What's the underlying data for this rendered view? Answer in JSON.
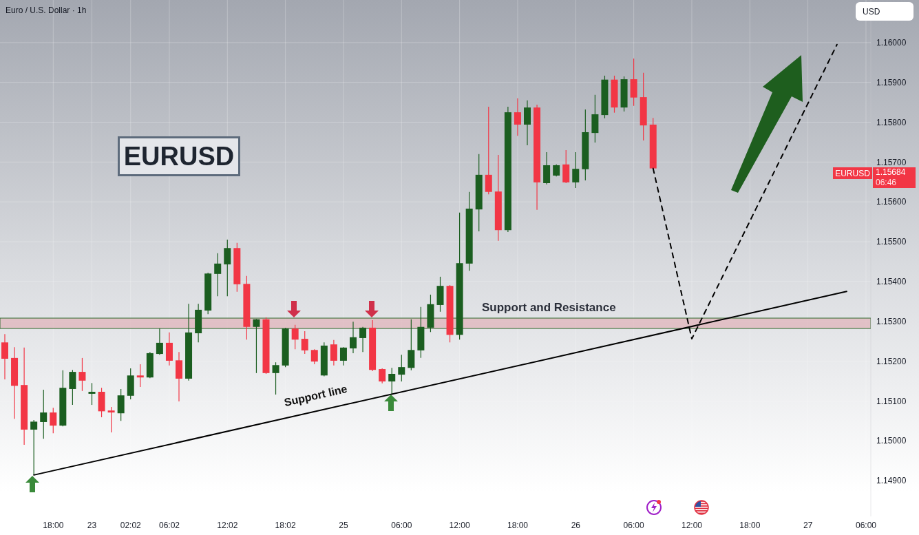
{
  "chart_data": {
    "type": "candlestick",
    "title": "Euro / U.S. Dollar · 1h",
    "categories": [
      null,
      null,
      null,
      null,
      null,
      "18:00",
      null,
      null,
      null,
      "23",
      null,
      null,
      null,
      "02:02",
      null,
      null,
      null,
      "06:02",
      null,
      null,
      null,
      null,
      null,
      "12:02",
      null,
      null,
      null,
      null,
      null,
      "18:02",
      null,
      null,
      null,
      null,
      null,
      "25",
      null,
      null,
      null,
      null,
      null,
      "06:00",
      null,
      null,
      null,
      null,
      null,
      "12:00",
      null,
      null,
      null,
      null,
      null,
      "18:00",
      null,
      null,
      null,
      null,
      null,
      "26",
      null,
      null,
      null,
      null,
      null,
      "06:00",
      null,
      null,
      null,
      null,
      null,
      "12:00",
      null,
      null,
      null,
      null,
      null,
      "18:00",
      null,
      null,
      null,
      null,
      null,
      "27",
      null,
      null,
      null,
      null,
      null,
      "06:00"
    ],
    "ohlc": [
      [
        1.15247,
        1.15268,
        1.15154,
        1.15206
      ],
      [
        1.15208,
        1.15235,
        1.15055,
        1.15138
      ],
      [
        1.1514,
        1.15234,
        1.1499,
        1.15028
      ],
      [
        1.15028,
        1.15052,
        1.14914,
        1.15048
      ],
      [
        1.15047,
        1.15128,
        1.15005,
        1.15071
      ],
      [
        1.15071,
        1.15083,
        1.15019,
        1.15038
      ],
      [
        1.15038,
        1.15177,
        1.15036,
        1.15133
      ],
      [
        1.1513,
        1.15178,
        1.1509,
        1.15173
      ],
      [
        1.15173,
        1.15208,
        1.15125,
        1.15151
      ],
      [
        1.15118,
        1.15145,
        1.1509,
        1.15123
      ],
      [
        1.15123,
        1.15133,
        1.15059,
        1.15074
      ],
      [
        1.15076,
        1.15085,
        1.15021,
        1.15071
      ],
      [
        1.15069,
        1.1513,
        1.1505,
        1.15114
      ],
      [
        1.15113,
        1.15182,
        1.15104,
        1.15164
      ],
      [
        1.15164,
        1.15192,
        1.15135,
        1.15159
      ],
      [
        1.15159,
        1.15223,
        1.15157,
        1.1522
      ],
      [
        1.15218,
        1.15282,
        1.15216,
        1.15246
      ],
      [
        1.15246,
        1.15272,
        1.15189,
        1.15201
      ],
      [
        1.15202,
        1.15223,
        1.15099,
        1.15156
      ],
      [
        1.15156,
        1.15344,
        1.15151,
        1.15272
      ],
      [
        1.1527,
        1.15344,
        1.15247,
        1.15329
      ],
      [
        1.15327,
        1.15422,
        1.15318,
        1.1542
      ],
      [
        1.15419,
        1.15471,
        1.15363,
        1.15445
      ],
      [
        1.15443,
        1.15505,
        1.15363,
        1.15484
      ],
      [
        1.15484,
        1.15497,
        1.15374,
        1.15393
      ],
      [
        1.15394,
        1.15414,
        1.15254,
        1.15286
      ],
      [
        1.15286,
        1.15306,
        1.1517,
        1.15305
      ],
      [
        1.15305,
        1.1531,
        1.15168,
        1.1517
      ],
      [
        1.1517,
        1.15197,
        1.15116,
        1.1519
      ],
      [
        1.15189,
        1.15284,
        1.15185,
        1.15282
      ],
      [
        1.15282,
        1.15291,
        1.1523,
        1.15254
      ],
      [
        1.15256,
        1.15275,
        1.15218,
        1.15227
      ],
      [
        1.15228,
        1.1523,
        1.15192,
        1.15199
      ],
      [
        1.15164,
        1.15247,
        1.15162,
        1.15239
      ],
      [
        1.15242,
        1.15253,
        1.15189,
        1.15201
      ],
      [
        1.15201,
        1.15235,
        1.15189,
        1.15234
      ],
      [
        1.15232,
        1.15299,
        1.1522,
        1.1526
      ],
      [
        1.15258,
        1.15286,
        1.15223,
        1.15284
      ],
      [
        1.15284,
        1.15303,
        1.15175,
        1.15178
      ],
      [
        1.1518,
        1.15182,
        1.15144,
        1.15149
      ],
      [
        1.15149,
        1.15183,
        1.15116,
        1.15168
      ],
      [
        1.15166,
        1.15216,
        1.15149,
        1.15185
      ],
      [
        1.15183,
        1.15305,
        1.15177,
        1.15228
      ],
      [
        1.15227,
        1.15336,
        1.15208,
        1.15286
      ],
      [
        1.15284,
        1.15367,
        1.15273,
        1.15343
      ],
      [
        1.15341,
        1.15412,
        1.15324,
        1.15389
      ],
      [
        1.15389,
        1.15391,
        1.15247,
        1.15266
      ],
      [
        1.15266,
        1.15573,
        1.15254,
        1.15446
      ],
      [
        1.15445,
        1.15625,
        1.15427,
        1.15583
      ],
      [
        1.15581,
        1.1572,
        1.15526,
        1.15668
      ],
      [
        1.15668,
        1.15839,
        1.15619,
        1.15625
      ],
      [
        1.15626,
        1.15718,
        1.15502,
        1.15529
      ],
      [
        1.15529,
        1.15839,
        1.15524,
        1.15825
      ],
      [
        1.15825,
        1.1586,
        1.15766,
        1.15794
      ],
      [
        1.15794,
        1.15855,
        1.15742,
        1.15837
      ],
      [
        1.15837,
        1.15844,
        1.1558,
        1.15649
      ],
      [
        1.15647,
        1.15725,
        1.15644,
        1.15692
      ],
      [
        1.15666,
        1.15694,
        1.15664,
        1.15692
      ],
      [
        1.15694,
        1.1573,
        1.15647,
        1.15649
      ],
      [
        1.15649,
        1.15725,
        1.15635,
        1.15683
      ],
      [
        1.15682,
        1.15832,
        1.15654,
        1.15775
      ],
      [
        1.15773,
        1.15869,
        1.15749,
        1.1582
      ],
      [
        1.15818,
        1.15917,
        1.1581,
        1.15907
      ],
      [
        1.15907,
        1.15917,
        1.15824,
        1.15837
      ],
      [
        1.15837,
        1.15915,
        1.15827,
        1.15908
      ],
      [
        1.15908,
        1.1596,
        1.15841,
        1.15862
      ],
      [
        1.15863,
        1.15924,
        1.15754,
        1.15792
      ],
      [
        1.15794,
        1.15811,
        1.15684,
        1.15684
      ],
      null,
      null,
      null,
      null,
      null,
      null,
      null,
      null,
      null,
      null,
      null,
      null,
      null,
      null,
      null,
      null,
      null,
      null,
      null,
      null,
      null,
      null
    ],
    "colors": [
      "#f23645",
      "#f23645",
      "#f23645",
      "#1b5e20",
      "#1b5e20",
      "#f23645",
      "#1b5e20",
      "#1b5e20",
      "#f23645",
      "#1b5e20",
      "#f23645",
      "#f23645",
      "#1b5e20",
      "#1b5e20",
      "#f23645",
      "#1b5e20",
      "#1b5e20",
      "#f23645",
      "#f23645",
      "#1b5e20",
      "#1b5e20",
      "#1b5e20",
      "#1b5e20",
      "#1b5e20",
      "#f23645",
      "#f23645",
      "#1b5e20",
      "#f23645",
      "#1b5e20",
      "#1b5e20",
      "#f23645",
      "#f23645",
      "#f23645",
      "#1b5e20",
      "#f23645",
      "#1b5e20",
      "#1b5e20",
      "#1b5e20",
      "#f23645",
      "#f23645",
      "#1b5e20",
      "#1b5e20",
      "#1b5e20",
      "#1b5e20",
      "#1b5e20",
      "#1b5e20",
      "#f23645",
      "#1b5e20",
      "#1b5e20",
      "#1b5e20",
      "#f23645",
      "#f23645",
      "#1b5e20",
      "#f23645",
      "#1b5e20",
      "#f23645",
      "#1b5e20",
      "#1b5e20",
      "#f23645",
      "#1b5e20",
      "#1b5e20",
      "#1b5e20",
      "#1b5e20",
      "#f23645",
      "#1b5e20",
      "#f23645",
      "#f23645",
      "#f23645",
      null,
      null,
      null,
      null,
      null,
      null,
      null,
      null,
      null,
      null,
      null,
      null,
      null,
      null,
      null,
      null,
      null,
      null,
      null,
      null,
      null,
      null
    ],
    "series": [
      {
        "type": "line",
        "color": "#000000",
        "line_style": "solid",
        "values": [
          null,
          null,
          null,
          1.14914,
          null,
          null,
          null,
          null,
          null,
          null,
          null,
          null,
          null,
          null,
          null,
          null,
          null,
          null,
          null,
          null,
          null,
          null,
          null,
          null,
          null,
          null,
          null,
          null,
          null,
          null,
          null,
          null,
          null,
          null,
          null,
          null,
          null,
          null,
          null,
          null,
          null,
          null,
          null,
          null,
          null,
          null,
          null,
          null,
          null,
          null,
          null,
          null,
          null,
          null,
          null,
          null,
          null,
          null,
          null,
          null,
          null,
          null,
          null,
          null,
          null,
          null,
          null,
          null,
          null,
          null,
          null,
          null,
          null,
          null,
          null,
          null,
          null,
          null,
          null,
          null,
          null,
          null,
          null,
          null,
          null,
          null,
          null,
          1.15375,
          null,
          null
        ]
      },
      {
        "type": "line",
        "color": "#000000",
        "line_style": "dashed",
        "values": [
          null,
          null,
          null,
          null,
          null,
          null,
          null,
          null,
          null,
          null,
          null,
          null,
          null,
          null,
          null,
          null,
          null,
          null,
          null,
          null,
          null,
          null,
          null,
          null,
          null,
          null,
          null,
          null,
          null,
          null,
          null,
          null,
          null,
          null,
          null,
          null,
          null,
          null,
          null,
          null,
          null,
          null,
          null,
          null,
          null,
          null,
          null,
          null,
          null,
          null,
          null,
          null,
          null,
          null,
          null,
          null,
          null,
          null,
          null,
          null,
          null,
          null,
          null,
          null,
          null,
          null,
          null,
          1.15684,
          null,
          null,
          null,
          1.15256,
          null,
          null,
          null,
          null,
          null,
          null,
          null,
          null,
          null,
          null,
          null,
          null,
          null,
          null,
          1.15995,
          null,
          null,
          null
        ]
      }
    ],
    "ylim": [
      1.1481,
      1.16107
    ],
    "yticks": [
      {
        "value": 1.149,
        "label": "1.14900"
      },
      {
        "value": 1.15,
        "label": "1.15000"
      },
      {
        "value": 1.151,
        "label": "1.15100"
      },
      {
        "value": 1.152,
        "label": "1.15200"
      },
      {
        "value": 1.153,
        "label": "1.15300"
      },
      {
        "value": 1.154,
        "label": "1.15400"
      },
      {
        "value": 1.155,
        "label": "1.15500"
      },
      {
        "value": 1.156,
        "label": "1.15600"
      },
      {
        "value": 1.157,
        "label": "1.15700"
      },
      {
        "value": 1.158,
        "label": "1.15800"
      },
      {
        "value": 1.159,
        "label": "1.15900"
      },
      {
        "value": 1.16,
        "label": "1.16000"
      }
    ],
    "bands": [
      {
        "axis": "y",
        "from": 1.15282,
        "to": 1.15308,
        "label": "Support and Resistance",
        "color": "#e0b4bb"
      }
    ],
    "annotations": [
      "EURUSD",
      "Support line",
      "EURUSD",
      "1.15684",
      "06:46",
      "USD"
    ],
    "grid": true
  }
}
